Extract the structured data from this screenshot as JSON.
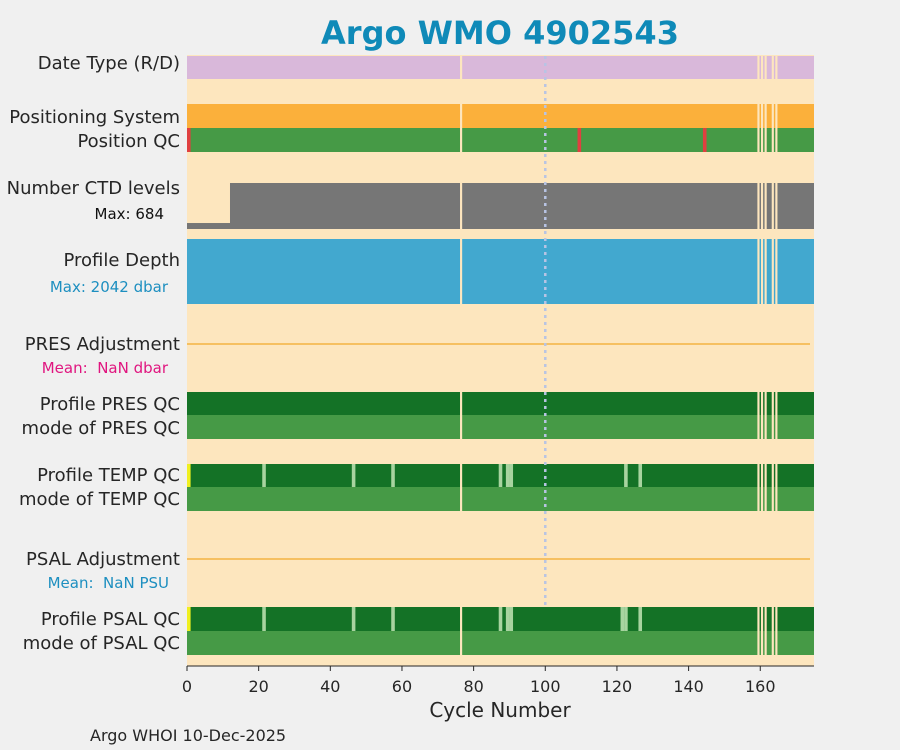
{
  "chart_data": {
    "type": "heatmap",
    "title": "Argo WMO 4902543",
    "xlabel": "Cycle Number",
    "xlim": [
      0,
      175
    ],
    "xticks": [
      0,
      20,
      40,
      60,
      80,
      100,
      120,
      140,
      160
    ],
    "footer": "Argo WHOI 10-Dec-2025",
    "marker_cycle": 100,
    "missing_cycles": [
      76,
      159,
      160,
      161,
      163,
      164
    ],
    "colors": {
      "background": "#fde6be",
      "date_type": "#d9b8da",
      "positioning": "#fbb03b",
      "qc_good": "#469a46",
      "qc_profile": "#147226",
      "qc_light": "#a8d4a0",
      "qc_bad": "#e04040",
      "qc_yellow": "#f0f020",
      "ctd": "#767676",
      "depth": "#42a8cf",
      "adjust_line": "#f4b342",
      "title": "#0f8ab8",
      "max_depth_text": "#1d8fc0",
      "pres_mean_text": "#e0157f",
      "psal_mean_text": "#1d8fc0",
      "marker": "#b8c4e4"
    },
    "rows": [
      {
        "label": "Date Type (R/D)",
        "key": "date_type"
      },
      {
        "label": "Positioning System",
        "key": "positioning"
      },
      {
        "label": "Position QC",
        "key": "position_qc",
        "bad_cycles": [
          0,
          109,
          144
        ]
      },
      {
        "label": "Number CTD levels",
        "sub": "Max: 684",
        "key": "ctd",
        "max": 684,
        "early_cycles_to": 12,
        "early_fraction": 0.13
      },
      {
        "label": "Profile Depth",
        "sub": "Max: 2042 dbar",
        "key": "depth",
        "max_dbar": 2042
      },
      {
        "label": "PRES Adjustment",
        "sub": "Mean:  NaN dbar",
        "key": "pres_adj"
      },
      {
        "label": "Profile PRES QC",
        "key": "pres_profile_qc"
      },
      {
        "label": "mode of PRES QC",
        "key": "pres_mode_qc"
      },
      {
        "label": "Profile TEMP QC",
        "key": "temp_profile_qc",
        "light_cycles": [
          21,
          46,
          57,
          87,
          89,
          90,
          122,
          126
        ],
        "yellow_cycles": [
          0
        ]
      },
      {
        "label": "mode of TEMP QC",
        "key": "temp_mode_qc"
      },
      {
        "label": "PSAL Adjustment",
        "sub": "Mean:  NaN PSU",
        "key": "psal_adj"
      },
      {
        "label": "Profile PSAL QC",
        "key": "psal_profile_qc",
        "light_cycles": [
          21,
          46,
          57,
          87,
          89,
          90,
          121,
          122,
          126
        ],
        "yellow_cycles": [
          0
        ]
      },
      {
        "label": "mode of PSAL QC",
        "key": "psal_mode_qc"
      }
    ]
  }
}
